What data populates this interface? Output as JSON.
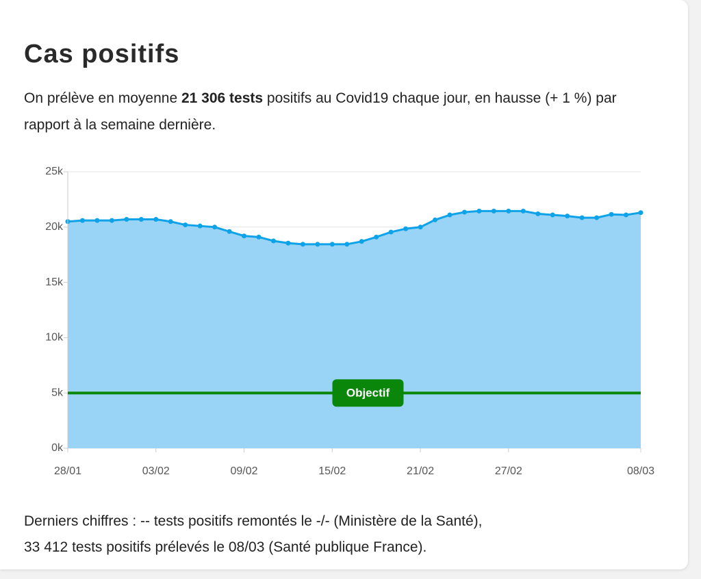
{
  "header": {
    "title": "Cas positifs"
  },
  "summary": {
    "before": "On prélève en moyenne ",
    "strong": "21 306 tests",
    "after": " positifs au Covid19 chaque jour, en hausse (+ 1 %) par rapport à la semaine dernière."
  },
  "chart_data": {
    "type": "area",
    "categories": [
      "28/01",
      null,
      null,
      null,
      null,
      null,
      "03/02",
      null,
      null,
      null,
      null,
      null,
      "09/02",
      null,
      null,
      null,
      null,
      null,
      "15/02",
      null,
      null,
      null,
      null,
      null,
      "21/02",
      null,
      null,
      null,
      null,
      null,
      "27/02",
      null,
      null,
      null,
      null,
      null,
      null,
      null,
      null,
      "08/03"
    ],
    "series": [
      {
        "color": "#0ea2e8",
        "fill": "#99d3f6",
        "values": [
          20500,
          20600,
          20600,
          20600,
          20700,
          20700,
          20700,
          20500,
          20200,
          20100,
          20000,
          19600,
          19200,
          19100,
          18750,
          18550,
          18450,
          18450,
          18450,
          18450,
          18700,
          19100,
          19550,
          19850,
          20000,
          20650,
          21100,
          21350,
          21450,
          21450,
          21450,
          21450,
          21200,
          21100,
          21000,
          20850,
          20850,
          21150,
          21100,
          21306
        ]
      }
    ],
    "ylim": [
      0,
      25000
    ],
    "yticks": [
      {
        "value": 0,
        "label": "0k"
      },
      {
        "value": 5000,
        "label": "5k"
      },
      {
        "value": 10000,
        "label": "10k"
      },
      {
        "value": 15000,
        "label": "15k"
      },
      {
        "value": 20000,
        "label": "20k"
      },
      {
        "value": 25000,
        "label": "25k"
      }
    ],
    "grid": true,
    "objective": {
      "value": 5000,
      "label": "Objectif",
      "color": "#0a870a"
    }
  },
  "footer": {
    "lines": [
      "Derniers chiffres : -- tests positifs remontés le -/- (Ministère de la Santé),",
      "33 412 tests positifs prélevés le 08/03 (Santé publique France)."
    ]
  }
}
